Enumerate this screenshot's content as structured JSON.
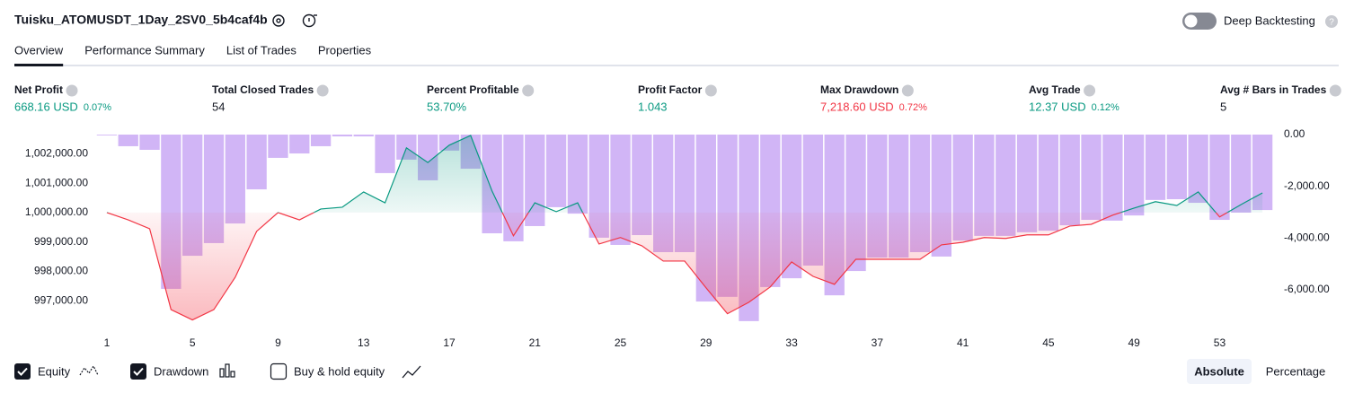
{
  "header": {
    "title": "Tuisku_ATOMUSDT_1Day_2SV0_5b4caf4b",
    "deep_backtesting": "Deep Backtesting"
  },
  "tabs": [
    "Overview",
    "Performance Summary",
    "List of Trades",
    "Properties"
  ],
  "active_tab": 0,
  "metrics": [
    {
      "label": "Net Profit",
      "value": "668.16 USD",
      "pct": "0.07%",
      "color": "#089981"
    },
    {
      "label": "Total Closed Trades",
      "value": "54",
      "color": "#131722"
    },
    {
      "label": "Percent Profitable",
      "value": "53.70%",
      "color": "#089981"
    },
    {
      "label": "Profit Factor",
      "value": "1.043",
      "color": "#089981"
    },
    {
      "label": "Max Drawdown",
      "value": "7,218.60 USD",
      "pct": "0.72%",
      "color": "#f23645"
    },
    {
      "label": "Avg Trade",
      "value": "12.37 USD",
      "pct": "0.12%",
      "color": "#089981"
    },
    {
      "label": "Avg # Bars in Trades",
      "value": "5",
      "color": "#131722"
    }
  ],
  "chart_data": {
    "type": "equity_drawdown",
    "x": [
      1,
      2,
      3,
      4,
      5,
      6,
      7,
      8,
      9,
      10,
      11,
      12,
      13,
      14,
      15,
      16,
      17,
      18,
      19,
      20,
      21,
      22,
      23,
      24,
      25,
      26,
      27,
      28,
      29,
      30,
      31,
      32,
      33,
      34,
      35,
      36,
      37,
      38,
      39,
      40,
      41,
      42,
      43,
      44,
      45,
      46,
      47,
      48,
      49,
      50,
      51,
      52,
      53,
      54,
      55
    ],
    "xlim": [
      0.5,
      55.5
    ],
    "xticks": [
      1,
      5,
      9,
      13,
      17,
      21,
      25,
      29,
      33,
      37,
      41,
      45,
      49,
      53
    ],
    "ylim": [
      996000,
      1002650
    ],
    "yticks": [
      {
        "value": 997000,
        "label": "997,000.00"
      },
      {
        "value": 998000,
        "label": "998,000.00"
      },
      {
        "value": 999000,
        "label": "999,000.00"
      },
      {
        "value": 1000000,
        "label": "1,000,000.00"
      },
      {
        "value": 1001000,
        "label": "1,001,000.00"
      },
      {
        "value": 1002000,
        "label": "1,002,000.00"
      }
    ],
    "y2lim": [
      -7570,
      0
    ],
    "y2ticks": [
      {
        "value": -6000,
        "label": "-6,000.00"
      },
      {
        "value": -4000,
        "label": "-4,000.00"
      },
      {
        "value": -2000,
        "label": "-2,000.00"
      },
      {
        "value": 0,
        "label": "0.00"
      }
    ],
    "series": [
      {
        "name": "Equity",
        "visible": true,
        "color": "#089981",
        "color_below": "#f23645",
        "values": [
          1000000,
          999750,
          999450,
          996700,
          996350,
          996700,
          997800,
          999360,
          1000000,
          999750,
          1000120,
          1000180,
          1000700,
          1000330,
          1002200,
          1001700,
          1002290,
          1002620,
          1000730,
          999210,
          1000330,
          1000030,
          1000330,
          998930,
          999150,
          998870,
          998350,
          998350,
          997440,
          996560,
          996950,
          997470,
          998320,
          997830,
          997560,
          998410,
          998410,
          998410,
          998410,
          998900,
          998990,
          999150,
          999120,
          999240,
          999240,
          999540,
          999600,
          999910,
          1000150,
          1000370,
          1000240,
          1000700,
          999850,
          1000270,
          1000668.16
        ]
      },
      {
        "name": "Drawdown",
        "visible": true,
        "axis": "y2",
        "color": "#c9a8f5",
        "values": [
          -30,
          -450,
          -590,
          -5970,
          -4690,
          -4200,
          -3440,
          -2120,
          -900,
          -730,
          -450,
          -70,
          -70,
          -1490,
          -970,
          -1770,
          -620,
          -1320,
          -3820,
          -4130,
          -3540,
          -2810,
          -3060,
          -3990,
          -4270,
          -3890,
          -4550,
          -4550,
          -6460,
          -6280,
          -7218.6,
          -5900,
          -5560,
          -5070,
          -6220,
          -5280,
          -4760,
          -4760,
          -4550,
          -4720,
          -4100,
          -3920,
          -3920,
          -3780,
          -3720,
          -3510,
          -3300,
          -3330,
          -3130,
          -2530,
          -2500,
          -2640,
          -3300,
          -3020,
          -2920
        ]
      }
    ]
  },
  "controls": {
    "buy_hold": "Buy & hold equity",
    "buy_hold_visible": false,
    "absolute": "Absolute",
    "percentage": "Percentage"
  }
}
